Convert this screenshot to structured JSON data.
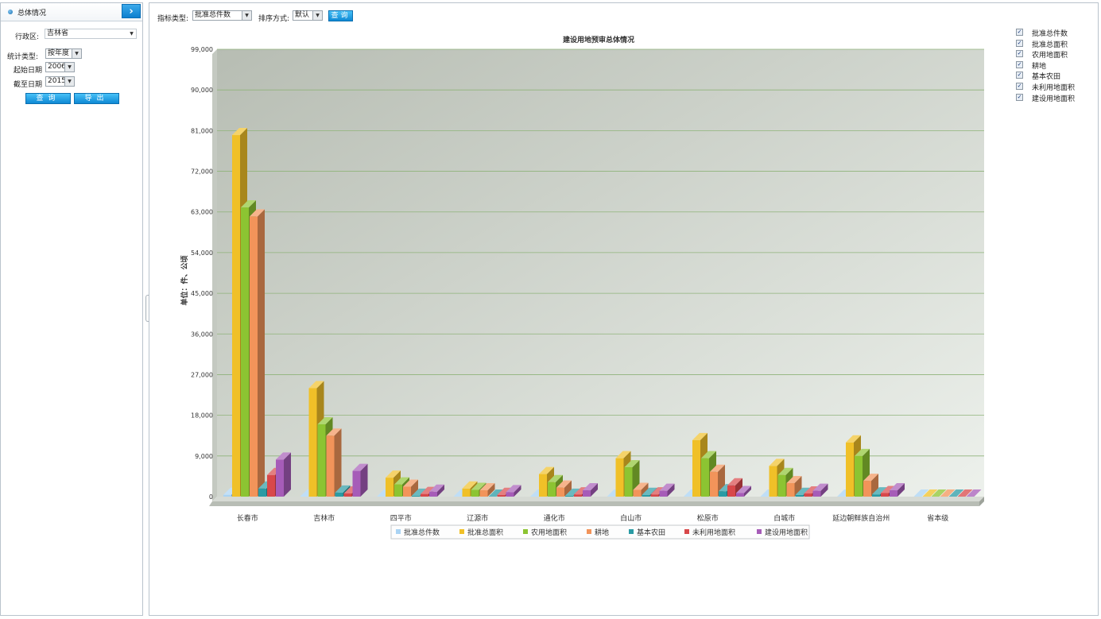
{
  "left_panel": {
    "title": "总体情况",
    "collapse_icon": "chevron-right-icon",
    "region_label": "行政区:",
    "region_value": "吉林省",
    "stat_type_label": "统计类型:",
    "stat_type_value": "按年度",
    "start_label": "起始日期",
    "start_value": "2006",
    "end_label": "截至日期",
    "end_value": "2015",
    "query_btn": "查询",
    "export_btn": "导出"
  },
  "toolbar": {
    "indicator_label": "指标类型:",
    "indicator_value": "批准总件数",
    "sort_label": "排序方式:",
    "sort_value": "默认",
    "query_btn": "查询"
  },
  "series_toggles": [
    {
      "label": "批准总件数",
      "checked": true
    },
    {
      "label": "批准总面积",
      "checked": true
    },
    {
      "label": "农用地面积",
      "checked": true
    },
    {
      "label": "耕地",
      "checked": true
    },
    {
      "label": "基本农田",
      "checked": true
    },
    {
      "label": "未利用地面积",
      "checked": true
    },
    {
      "label": "建设用地面积",
      "checked": true
    }
  ],
  "chart_data": {
    "type": "bar",
    "title": "建设用地预审总体情况",
    "ylabel": "单位：件、公顷",
    "xlabel": "",
    "ylim": [
      0,
      99000
    ],
    "yticks": [
      "0",
      "9,000",
      "18,000",
      "27,000",
      "36,000",
      "45,000",
      "54,000",
      "63,000",
      "72,000",
      "81,000",
      "90,000",
      "99,000"
    ],
    "categories": [
      "长春市",
      "吉林市",
      "四平市",
      "辽源市",
      "通化市",
      "白山市",
      "松原市",
      "白城市",
      "延边朝鲜族自治州",
      "省本级"
    ],
    "series": [
      {
        "name": "批准总件数",
        "color": "#a9d3f3",
        "values": [
          400,
          150,
          80,
          60,
          90,
          60,
          110,
          80,
          150,
          20
        ]
      },
      {
        "name": "批准总面积",
        "color": "#f0c028",
        "values": [
          80000,
          24000,
          4200,
          1800,
          5000,
          8500,
          12500,
          6800,
          12000,
          0
        ]
      },
      {
        "name": "农用地面积",
        "color": "#8cc432",
        "values": [
          64000,
          16000,
          2700,
          1500,
          3200,
          6500,
          8500,
          4800,
          9000,
          0
        ]
      },
      {
        "name": "耕地",
        "color": "#f2945a",
        "values": [
          62000,
          13500,
          2200,
          1400,
          2000,
          1500,
          5500,
          3000,
          3500,
          0
        ]
      },
      {
        "name": "基本农田",
        "color": "#2a9ba4",
        "values": [
          1800,
          900,
          200,
          150,
          200,
          400,
          1200,
          400,
          500,
          0
        ]
      },
      {
        "name": "未利用地面积",
        "color": "#d8484a",
        "values": [
          4800,
          700,
          600,
          400,
          500,
          500,
          2500,
          700,
          800,
          0
        ]
      },
      {
        "name": "建设用地面积",
        "color": "#a65cb8",
        "values": [
          8200,
          5700,
          1100,
          1000,
          1400,
          1300,
          800,
          1300,
          1400,
          0
        ]
      }
    ],
    "grid": true,
    "legend_position": "bottom"
  }
}
